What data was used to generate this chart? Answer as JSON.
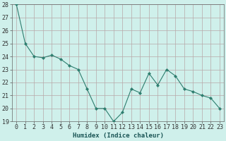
{
  "x": [
    0,
    1,
    2,
    3,
    4,
    5,
    6,
    7,
    8,
    9,
    10,
    11,
    12,
    13,
    14,
    15,
    16,
    17,
    18,
    19,
    20,
    21,
    22,
    23
  ],
  "y": [
    28.0,
    25.0,
    24.0,
    23.9,
    24.1,
    23.8,
    23.3,
    23.0,
    21.5,
    20.0,
    20.0,
    19.0,
    19.7,
    21.5,
    21.2,
    22.7,
    21.8,
    23.0,
    22.5,
    21.5,
    21.3,
    21.0,
    20.8,
    20.0
  ],
  "line_color": "#2d7d6e",
  "marker": "D",
  "marker_size": 2.2,
  "bg_color": "#cff0eb",
  "grid_color_major": "#b8a8a8",
  "grid_color_minor": "#d8c8c8",
  "xlabel": "Humidex (Indice chaleur)",
  "ylim": [
    19,
    28
  ],
  "xlim": [
    -0.5,
    23.5
  ],
  "yticks": [
    19,
    20,
    21,
    22,
    23,
    24,
    25,
    26,
    27,
    28
  ],
  "xticks": [
    0,
    1,
    2,
    3,
    4,
    5,
    6,
    7,
    8,
    9,
    10,
    11,
    12,
    13,
    14,
    15,
    16,
    17,
    18,
    19,
    20,
    21,
    22,
    23
  ],
  "xlabel_fontsize": 6.5,
  "tick_fontsize": 6.0
}
